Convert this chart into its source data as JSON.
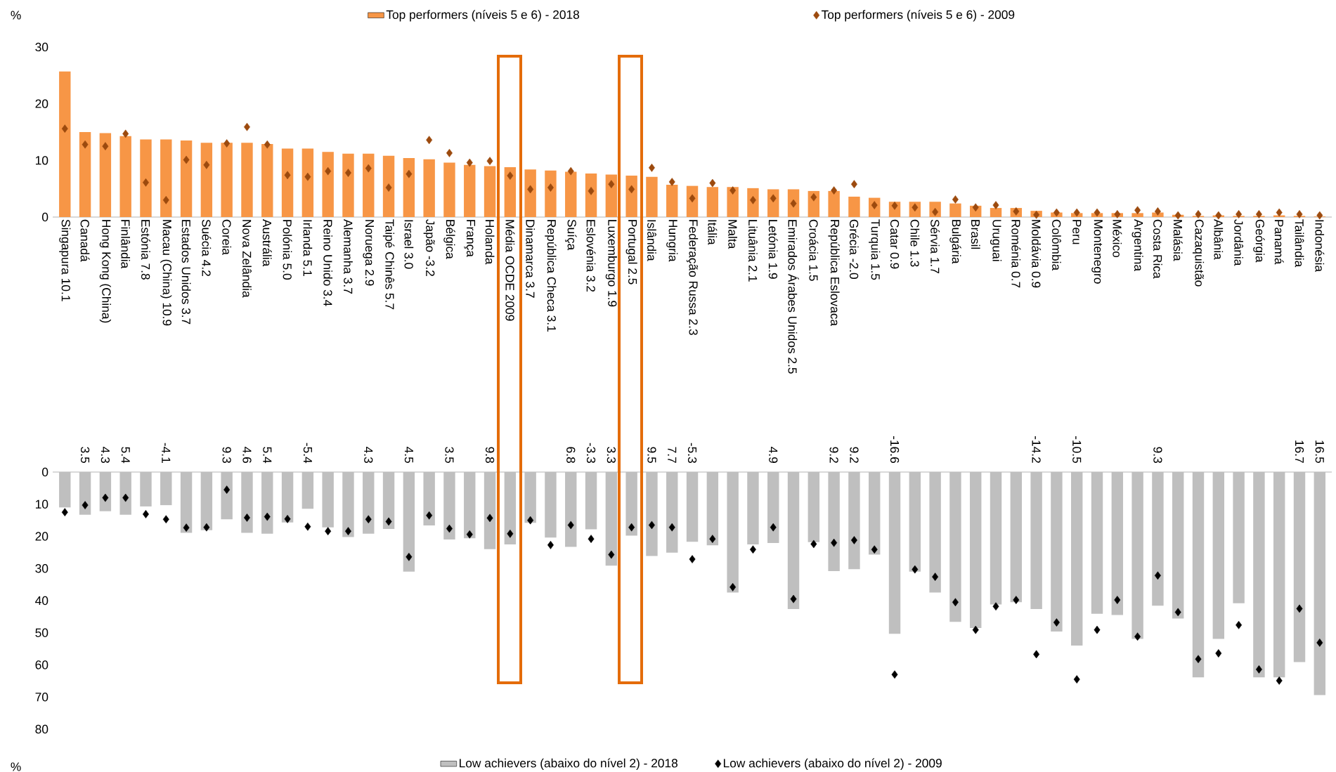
{
  "chart_data": [
    {
      "type": "bar",
      "ylabel": "%",
      "legend": "top",
      "marker": "diamond",
      "ylim": [
        0,
        30
      ],
      "yticks": [
        0,
        10,
        20,
        30
      ],
      "categories": [
        "Singapura 10.1",
        "Canadá",
        "Hong Kong (China)",
        "Finlândia",
        "Estónia 7.8",
        "Macau (China) 10.9",
        "Estados Unidos 3.7",
        "Suécia 4.2",
        "Coreia",
        "Nova Zelândia",
        "Austrália",
        "Polónia 5.0",
        "Irlanda 5.1",
        "Reino Unido 3.4",
        "Alemanha 3.7",
        "Noruega 2.9",
        "Taipé Chinês 5.7",
        "Israel 3.0",
        "Japão -3.2",
        "Bélgica",
        "França",
        "Holanda",
        "Média OCDE 2009",
        "Dinamarca 3.7",
        "República Checa 3.1",
        "Suíça",
        "Eslovénia 3.2",
        "Luxemburgo 1.9",
        "Portugal 2.5",
        "Islândia",
        "Hungria",
        "Federação Russa 2.3",
        "Itália",
        "Malta",
        "Lituânia 2.1",
        "Letónia 1.9",
        "Emirados Árabes Unidos 2.5",
        "Croácia 1.5",
        "República Eslovaca",
        "Grécia -2.0",
        "Turquia 1.5",
        "Catar 0.9",
        "Chile 1.3",
        "Sérvia 1.7",
        "Bulgária",
        "Brasil",
        "Uruguai",
        "Roménia 0.7",
        "Moldávia 0.9",
        "Colômbia",
        "Peru",
        "Montenegro",
        "México",
        "Argentina",
        "Costa Rica",
        "Malásia",
        "Cazaquistão",
        "Albânia",
        "Jordânia",
        "Geórgia",
        "Panamá",
        "Tailândia",
        "Indonésia"
      ],
      "series": [
        {
          "name": "Top performers (níveis 5 e 6) - 2018",
          "color": "#f79646",
          "values": [
            25.7,
            15.0,
            14.8,
            14.3,
            13.7,
            13.7,
            13.5,
            13.1,
            13.1,
            13.1,
            12.9,
            12.1,
            12.1,
            11.5,
            11.2,
            11.2,
            10.8,
            10.4,
            10.2,
            9.6,
            9.2,
            9.0,
            8.8,
            8.4,
            8.2,
            8.0,
            7.7,
            7.5,
            7.3,
            7.1,
            5.7,
            5.5,
            5.3,
            5.3,
            5.1,
            4.9,
            4.9,
            4.6,
            4.6,
            3.6,
            3.4,
            2.7,
            2.7,
            2.7,
            2.4,
            2.0,
            1.6,
            1.6,
            1.1,
            0.8,
            0.7,
            0.7,
            0.7,
            0.7,
            0.8,
            0.4,
            0.2,
            0.3,
            0.2,
            0.2,
            0.3,
            0.2,
            0.1
          ]
        },
        {
          "name": "Top performers (níveis 5 e 6) - 2009",
          "type": "scatter",
          "color": "#9c4a0e",
          "values": [
            15.6,
            12.8,
            12.5,
            14.7,
            6.1,
            3.0,
            10.1,
            9.2,
            13.0,
            15.9,
            12.8,
            7.4,
            7.1,
            8.1,
            7.8,
            8.6,
            5.2,
            7.6,
            13.6,
            11.3,
            9.6,
            9.9,
            7.3,
            4.9,
            5.2,
            8.1,
            4.6,
            5.8,
            4.9,
            8.7,
            6.2,
            3.3,
            6.0,
            4.7,
            3.0,
            3.3,
            2.4,
            3.5,
            4.7,
            5.8,
            2.1,
            2.0,
            1.7,
            0.9,
            3.1,
            1.7,
            2.1,
            1.0,
            0.4,
            0.8,
            0.8,
            0.8,
            0.5,
            1.2,
            1.0,
            0.3,
            0.5,
            0.3,
            0.5,
            0.5,
            0.8,
            0.5,
            0.3
          ]
        }
      ]
    },
    {
      "type": "bar",
      "ylabel": "%",
      "legend": "bottom",
      "marker": "diamond",
      "ylim": [
        80,
        0
      ],
      "yticks": [
        0,
        10,
        20,
        30,
        40,
        50,
        60,
        70,
        80
      ],
      "tick_labels": "y",
      "categories": [
        null,
        null,
        null,
        null,
        null,
        null,
        null,
        null,
        null,
        null,
        null,
        null,
        null,
        null,
        null,
        null,
        null,
        null,
        null,
        null,
        null,
        null,
        null,
        null,
        null,
        null,
        null,
        null,
        null,
        null,
        null,
        null,
        null,
        null,
        null,
        null,
        null,
        null,
        null,
        null,
        null,
        null,
        null,
        null,
        null,
        null,
        null,
        null,
        null,
        null,
        null,
        null,
        null,
        null,
        null,
        null,
        null,
        null,
        null,
        null,
        null,
        null,
        null
      ],
      "series": [
        {
          "name": "Low achievers (abaixo do nível 2) - 2018",
          "color": "#bfbfbf",
          "values": [
            11.0,
            13.3,
            12.2,
            13.3,
            10.7,
            10.3,
            18.9,
            18.1,
            14.7,
            18.9,
            19.2,
            15.7,
            11.4,
            17.2,
            20.2,
            19.2,
            17.7,
            31.0,
            16.6,
            21.0,
            20.6,
            24.0,
            22.5,
            15.8,
            20.4,
            23.3,
            17.8,
            29.1,
            19.8,
            26.1,
            25.1,
            21.7,
            22.8,
            37.5,
            22.5,
            22.1,
            42.6,
            21.8,
            30.8,
            30.2,
            25.7,
            50.3,
            31.0,
            37.5,
            46.6,
            48.5,
            41.2,
            40.5,
            42.6,
            49.6,
            54.0,
            44.1,
            44.5,
            51.9,
            41.6,
            45.6,
            63.9,
            51.9,
            40.8,
            63.9,
            63.9,
            59.1,
            69.4
          ]
        },
        {
          "name": "Low achievers (abaixo do nível 2) - 2009",
          "type": "scatter",
          "color": "#000000",
          "values": [
            12.5,
            10.3,
            8.0,
            8.0,
            13.1,
            14.7,
            17.3,
            17.2,
            5.5,
            14.2,
            13.9,
            14.6,
            17.0,
            18.4,
            18.4,
            14.7,
            15.4,
            26.4,
            13.5,
            17.6,
            19.4,
            14.3,
            19.2,
            15.0,
            22.7,
            16.5,
            20.8,
            25.7,
            17.2,
            16.5,
            17.2,
            27.1,
            20.8,
            35.8,
            24.1,
            17.2,
            39.5,
            22.4,
            22.0,
            21.2,
            24.1,
            63.0,
            30.3,
            32.6,
            40.5,
            49.1,
            41.8,
            39.8,
            56.7,
            46.8,
            64.5,
            49.1,
            39.8,
            51.2,
            32.2,
            43.6,
            58.2,
            56.4,
            47.6,
            61.4,
            64.9,
            42.5,
            53.1
          ]
        }
      ],
      "annotations": [
        "3.5",
        "4.3",
        "5.4",
        "-4.1",
        "9.3",
        "4.6",
        "5.4",
        "-5.4",
        "4.3",
        "4.5",
        "3.5",
        "9.8",
        "6.8",
        "-3.3",
        "3.3",
        "9.5",
        "7.7",
        "-5.3",
        "4.9",
        "9.2",
        "9.2",
        "-16.6",
        "-14.2",
        "-10.5",
        "9.3",
        "16.7",
        "16.5"
      ]
    }
  ]
}
